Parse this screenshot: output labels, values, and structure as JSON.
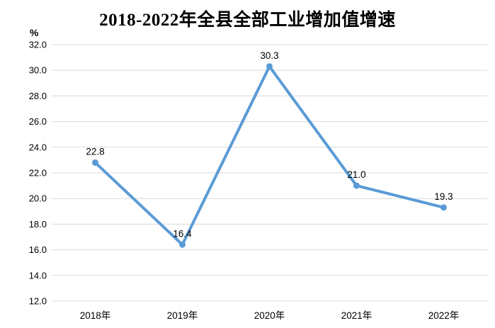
{
  "chart_data": {
    "type": "line",
    "title": "2018-2022年全县全部工业增加值增速",
    "unit_label": "%",
    "xlabel": "",
    "ylabel": "%",
    "categories": [
      "2018年",
      "2019年",
      "2020年",
      "2021年",
      "2022年"
    ],
    "series": [
      {
        "name": "全部工业增加值增速",
        "values": [
          22.8,
          16.4,
          30.3,
          21.0,
          19.3
        ],
        "data_labels": [
          "22.8",
          "16.4",
          "30.3",
          "21.0",
          "19.3"
        ]
      }
    ],
    "y_ticks": [
      "32.0",
      "30.0",
      "28.0",
      "26.0",
      "24.0",
      "22.0",
      "20.0",
      "18.0",
      "16.0",
      "14.0",
      "12.0"
    ],
    "ylim": [
      12.0,
      32.0
    ],
    "y_step": 2.0,
    "grid": "horizontal",
    "legend": "none",
    "colors": {
      "line": "#5B9BD5",
      "marker": "#5B9BD5",
      "gridline": "#D9D9D9",
      "text": "#000000",
      "background": "#FFFFFF"
    }
  }
}
